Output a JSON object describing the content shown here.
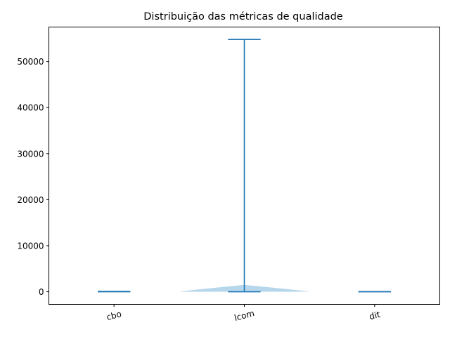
{
  "chart_data": {
    "type": "violin",
    "title": "Distribuição das métricas de qualidade",
    "xlabel": "",
    "ylabel": "",
    "categories": [
      "cbo",
      "lcom",
      "dit"
    ],
    "ylim": [
      -2740,
      57500
    ],
    "y_ticks": [
      0,
      10000,
      20000,
      30000,
      40000,
      50000
    ],
    "y_tick_labels": [
      "0",
      "10000",
      "20000",
      "30000",
      "40000",
      "50000"
    ],
    "x_tick_rotation_deg": 15,
    "violins": [
      {
        "name": "cbo",
        "min": 0,
        "max": 80,
        "body_peak": 60,
        "body_halfwidth": 0.05
      },
      {
        "name": "lcom",
        "min": 0,
        "max": 54800,
        "body_peak": 1300,
        "body_halfwidth": 0.5
      },
      {
        "name": "dit",
        "min": 0,
        "max": 10,
        "body_peak": 5,
        "body_halfwidth": 0.05
      }
    ],
    "colors": {
      "line": "#1f77b4",
      "body": "#9ec8e6"
    },
    "grid": false,
    "legend": "none"
  }
}
